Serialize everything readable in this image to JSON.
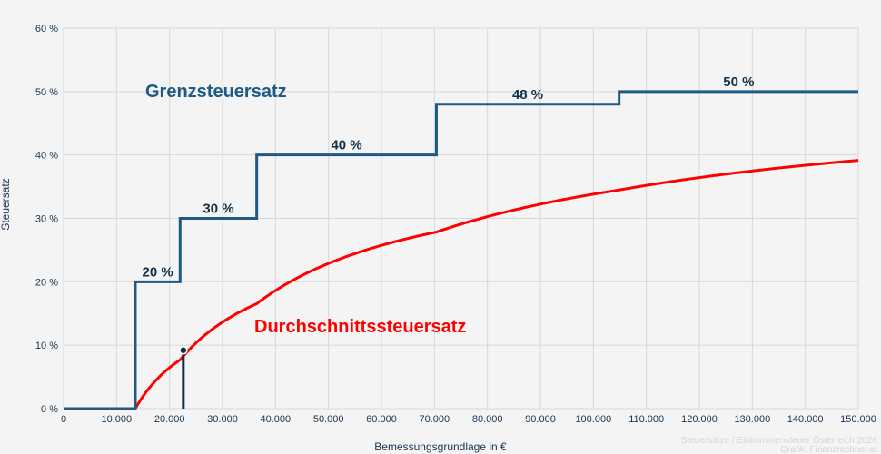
{
  "chart_data": {
    "type": "line",
    "xlabel": "Bemessungsgrundlage in €",
    "ylabel": "Steuersatz",
    "xlim": [
      0,
      150000
    ],
    "ylim": [
      0,
      60
    ],
    "grid": true,
    "x_ticks": [
      "0",
      "10.000",
      "20.000",
      "30.000",
      "40.000",
      "50.000",
      "60.000",
      "70.000",
      "80.000",
      "90.000",
      "100.000",
      "110.000",
      "120.000",
      "130.000",
      "140.000",
      "150.000"
    ],
    "y_ticks": [
      "0 %",
      "10 %",
      "20 %",
      "30 %",
      "40 %",
      "50 %",
      "60 %"
    ],
    "series": [
      {
        "name": "Grenzsteuersatz",
        "color": "#1f5a85",
        "steps": [
          {
            "from": 0,
            "rate": 0
          },
          {
            "from": 13539,
            "rate": 20,
            "label": "20 %"
          },
          {
            "from": 21992,
            "rate": 30,
            "label": "30 %"
          },
          {
            "from": 36458,
            "rate": 40,
            "label": "40 %"
          },
          {
            "from": 70365,
            "rate": 48,
            "label": "48 %"
          },
          {
            "from": 104859,
            "rate": 50,
            "label": "50 %"
          }
        ]
      },
      {
        "name": "Durchschnittssteuersatz",
        "color": "#ff0000"
      }
    ],
    "marker": {
      "x": 22600,
      "y": 9.2,
      "color": "#0f2d4a"
    },
    "annotations": [
      "Steuersätze / Einkommensteuer Österreich 2026",
      "Grafik: Finanzrechner.at"
    ]
  }
}
